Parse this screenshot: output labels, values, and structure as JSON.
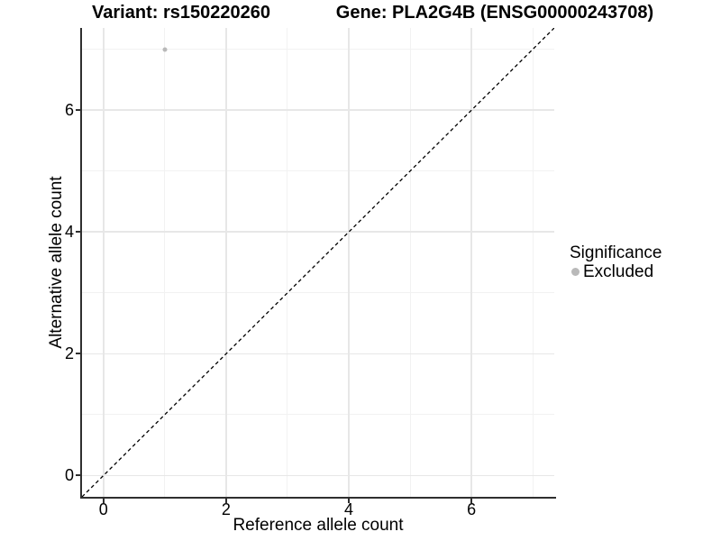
{
  "header": {
    "variant_title": "Variant: rs150220260",
    "gene_title": "Gene: PLA2G4B (ENSG00000243708)"
  },
  "chart_data": {
    "type": "scatter",
    "title": "Variant: rs150220260 / Gene: PLA2G4B (ENSG00000243708)",
    "xlabel": "Reference allele count",
    "ylabel": "Alternative allele count",
    "xlim": [
      -0.35,
      7.35
    ],
    "ylim": [
      -0.35,
      7.35
    ],
    "x_major_ticks": [
      0,
      2,
      4,
      6
    ],
    "x_minor_ticks": [
      1,
      3,
      5,
      7
    ],
    "y_major_ticks": [
      0,
      2,
      4,
      6
    ],
    "y_minor_ticks": [
      1,
      3,
      5,
      7
    ],
    "grid": true,
    "series": [
      {
        "name": "Excluded",
        "color": "#b9b9b9",
        "points": [
          {
            "x": 1,
            "y": 7
          }
        ]
      }
    ],
    "identity_line": {
      "style": "dashed",
      "color": "#000000",
      "from": [
        -0.35,
        -0.35
      ],
      "to": [
        7.35,
        7.35
      ]
    },
    "legend": {
      "title": "Significance",
      "position": "right",
      "items": [
        {
          "label": "Excluded",
          "color": "#b9b9b9"
        }
      ]
    },
    "colors": {
      "axis": "#2f2f2f",
      "grid_major": "#e7e7e7",
      "grid_minor": "#f2f2f2",
      "point": "#b9b9b9",
      "background": "#ffffff"
    }
  }
}
